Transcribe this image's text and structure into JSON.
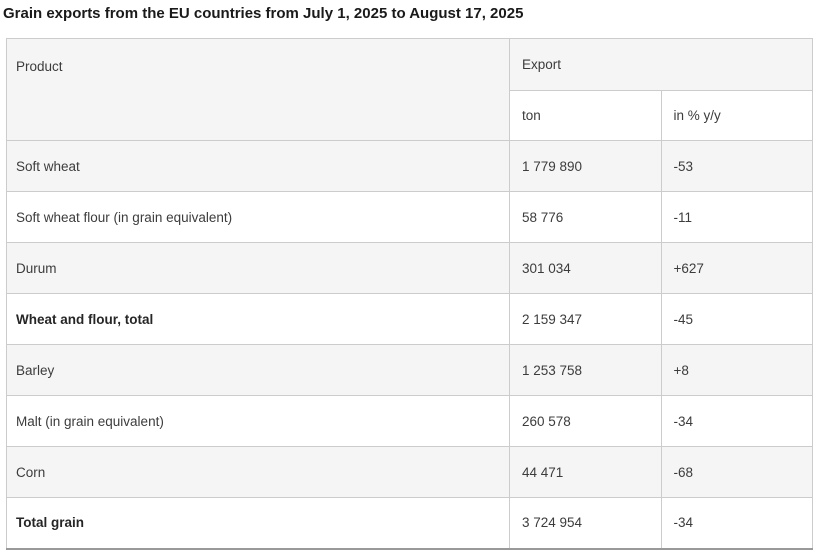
{
  "page_title": "Grain exports from the EU countries from July 1, 2025 to August 17, 2025",
  "chart_data": {
    "type": "table",
    "title": "Grain exports from the EU countries from July 1, 2025 to August 17, 2025",
    "header": {
      "product": "Product",
      "export_group": "Export",
      "col_ton": "ton",
      "col_pct": "in % y/y"
    },
    "rows": [
      {
        "product": "Soft wheat",
        "ton": "1 779 890",
        "ton_value": 1779890,
        "yoy": "-53",
        "yoy_value": -53,
        "bold": false
      },
      {
        "product": "Soft wheat flour (in grain equivalent)",
        "ton": "58 776",
        "ton_value": 58776,
        "yoy": "-11",
        "yoy_value": -11,
        "bold": false
      },
      {
        "product": "Durum",
        "ton": "301 034",
        "ton_value": 301034,
        "yoy": "+627",
        "yoy_value": 627,
        "bold": false
      },
      {
        "product": "Wheat and flour, total",
        "ton": "2 159 347",
        "ton_value": 2159347,
        "yoy": "-45",
        "yoy_value": -45,
        "bold": true
      },
      {
        "product": "Barley",
        "ton": "1 253 758",
        "ton_value": 1253758,
        "yoy": "+8",
        "yoy_value": 8,
        "bold": false
      },
      {
        "product": "Malt (in grain equivalent)",
        "ton": "260 578",
        "ton_value": 260578,
        "yoy": "-34",
        "yoy_value": -34,
        "bold": false
      },
      {
        "product": "Corn",
        "ton": "44 471",
        "ton_value": 44471,
        "yoy": "-68",
        "yoy_value": -68,
        "bold": false
      },
      {
        "product": "Total grain",
        "ton": "3 724 954",
        "ton_value": 3724954,
        "yoy": "-34",
        "yoy_value": -34,
        "bold": true
      }
    ],
    "colors": {
      "shaded_row_bg": "#f5f5f5",
      "row_bg": "#ffffff",
      "border": "#cccccc",
      "bottom_border": "#999999",
      "text": "#3c3c3c",
      "title_text": "#1a1a1a"
    }
  }
}
